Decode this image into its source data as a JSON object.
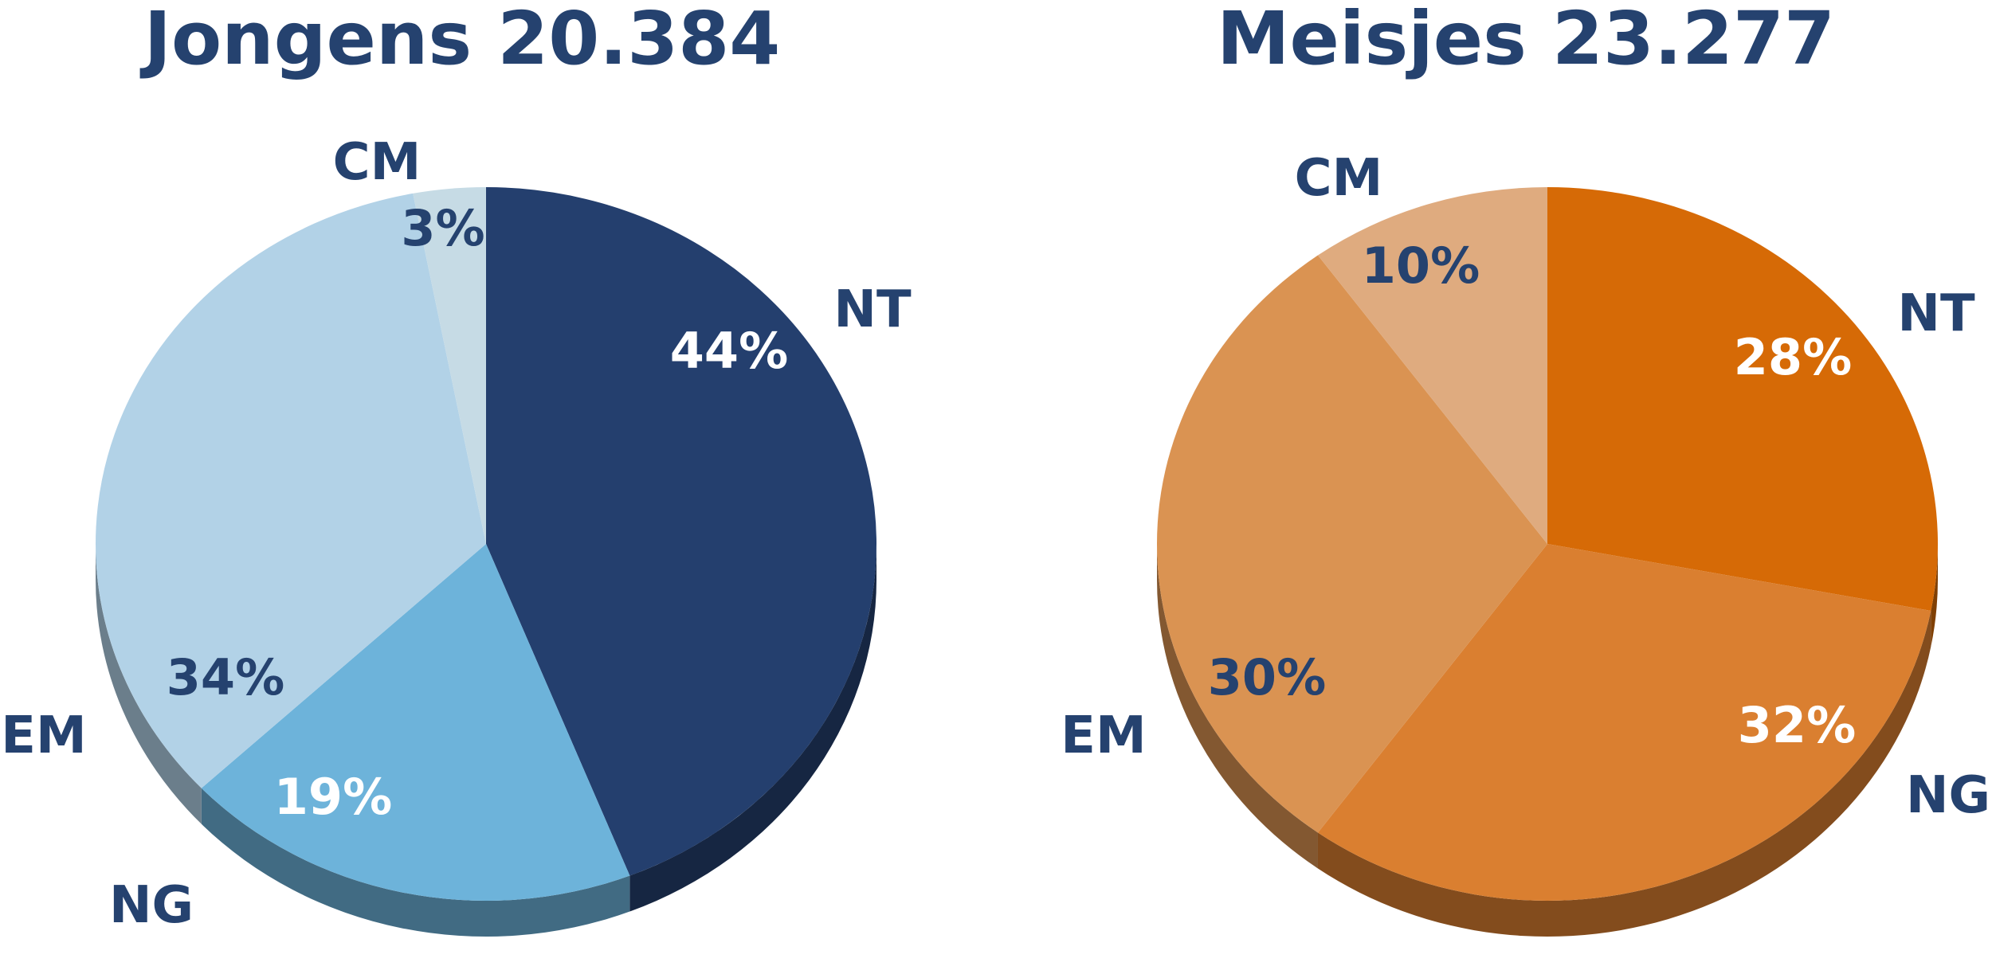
{
  "chart_data": [
    {
      "type": "pie",
      "title": "Jongens 20.384",
      "slices": [
        {
          "label": "NT",
          "value": 44,
          "value_label": "44%",
          "color": "#243f6e",
          "text_color": "#ffffff"
        },
        {
          "label": "NG",
          "value": 19,
          "value_label": "19%",
          "color": "#6db3da",
          "text_color": "#ffffff"
        },
        {
          "label": "EM",
          "value": 34,
          "value_label": "34%",
          "color": "#b2d2e7",
          "text_color": "#25426f"
        },
        {
          "label": "CM",
          "value": 3,
          "value_label": "3%",
          "color": "#c6dbe5",
          "text_color": "#25426f"
        }
      ]
    },
    {
      "type": "pie",
      "title": "Meisjes 23.277",
      "slices": [
        {
          "label": "NT",
          "value": 28,
          "value_label": "28%",
          "color": "#d66a06",
          "text_color": "#ffffff"
        },
        {
          "label": "NG",
          "value": 32,
          "value_label": "32%",
          "color": "#da7f30",
          "text_color": "#ffffff"
        },
        {
          "label": "EM",
          "value": 30,
          "value_label": "30%",
          "color": "#da9352",
          "text_color": "#25426f"
        },
        {
          "label": "CM",
          "value": 10,
          "value_label": "10%",
          "color": "#dfab7f",
          "text_color": "#25426f"
        }
      ]
    }
  ]
}
